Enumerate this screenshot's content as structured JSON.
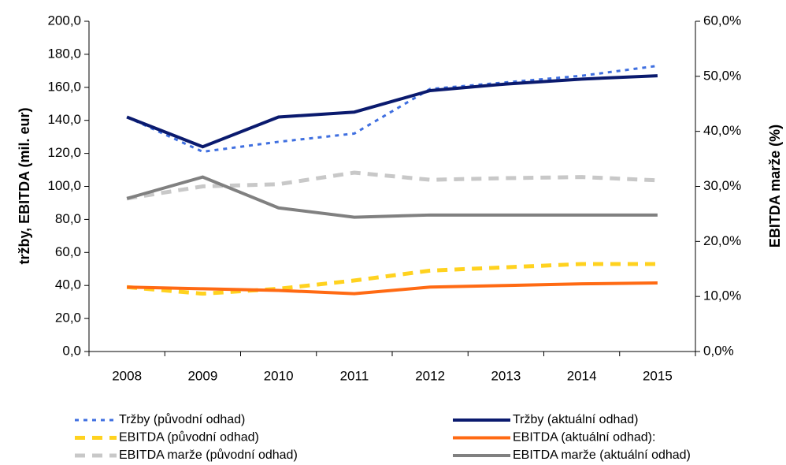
{
  "chart_data": {
    "type": "line",
    "y_label": "tržby, EBITDA (mil. eur)",
    "y2_label": "EBITDA marže (%)",
    "categories": [
      "2008",
      "2009",
      "2010",
      "2011",
      "2012",
      "2013",
      "2014",
      "2015"
    ],
    "ylim": [
      0,
      200
    ],
    "yticks": [
      {
        "value": 0,
        "label": "0,0"
      },
      {
        "value": 20,
        "label": "20,0"
      },
      {
        "value": 40,
        "label": "40,0"
      },
      {
        "value": 60,
        "label": "60,0"
      },
      {
        "value": 80,
        "label": "80,0"
      },
      {
        "value": 100,
        "label": "100,0"
      },
      {
        "value": 120,
        "label": "120,0"
      },
      {
        "value": 140,
        "label": "140,0"
      },
      {
        "value": 160,
        "label": "160,0"
      },
      {
        "value": 180,
        "label": "180,0"
      },
      {
        "value": 200,
        "label": "200,0"
      }
    ],
    "y2lim": [
      0,
      60
    ],
    "y2ticks": [
      {
        "value": 0,
        "label": "0,0%"
      },
      {
        "value": 10,
        "label": "10,0%"
      },
      {
        "value": 20,
        "label": "20,0%"
      },
      {
        "value": 30,
        "label": "30,0%"
      },
      {
        "value": 40,
        "label": "40,0%"
      },
      {
        "value": 50,
        "label": "50,0%"
      },
      {
        "value": 60,
        "label": "60,0%"
      }
    ],
    "series": [
      {
        "name": "Tržby (původní odhad)",
        "color": "#3f6fe0",
        "style": "dotted",
        "values": [
          142,
          121,
          127,
          132,
          159,
          163,
          167,
          173
        ]
      },
      {
        "name": "Tržby (aktuální odhad)",
        "color": "#0a1a6e",
        "style": "solid",
        "values": [
          142,
          124,
          142,
          145,
          158,
          162,
          165,
          167
        ]
      },
      {
        "name": "EBITDA (původní odhad)",
        "color": "#ffd21f",
        "style": "dashed",
        "values": [
          39,
          35,
          38,
          43,
          49,
          51,
          53,
          53
        ]
      },
      {
        "name": "EBITDA (aktuální odhad):",
        "color": "#ff6a13",
        "style": "solid",
        "values": [
          39,
          38,
          37,
          35,
          39,
          40,
          41,
          41.5
        ]
      },
      {
        "name": "EBITDA marže (původní odhad)",
        "color": "#c8c8c8",
        "style": "dashed",
        "axis": "y2",
        "values": [
          27.8,
          30.0,
          30.4,
          32.5,
          31.2,
          31.5,
          31.7,
          31.1
        ]
      },
      {
        "name": "EBITDA marže (aktuální odhad)",
        "color": "#808080",
        "style": "solid",
        "axis": "y2",
        "values": [
          27.8,
          31.7,
          26.1,
          24.4,
          24.8,
          24.8,
          24.8,
          24.8
        ]
      }
    ]
  }
}
